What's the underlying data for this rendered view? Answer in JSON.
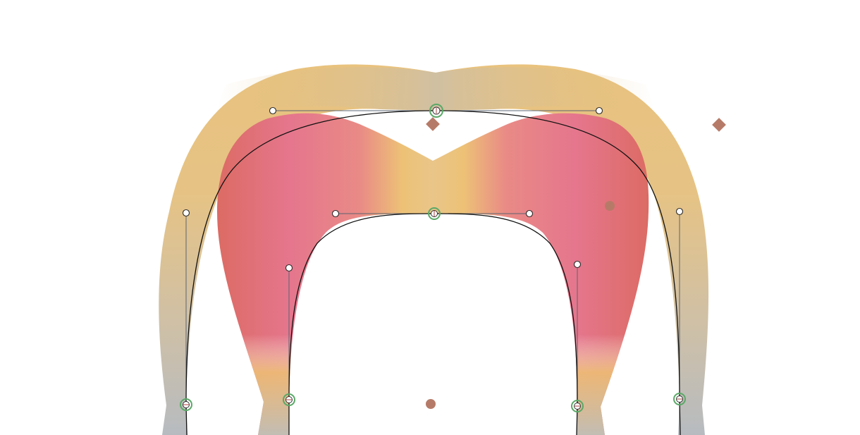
{
  "colors": {
    "outer_gradient": [
      "#b9bcc0",
      "#c8bda8",
      "#e2c38c",
      "#e9be7a",
      "#e3c08e",
      "#cdbfa6"
    ],
    "inner_gradient": [
      "#de6d6a",
      "#e6788f",
      "#eab57a",
      "#ecc578",
      "#e6788f",
      "#de6d6a"
    ],
    "handle_line": "#5b6470",
    "curve": "#111111",
    "anchor_ring": "#5aa867",
    "marker": "#b67b68"
  },
  "icons": {
    "anchor": "anchor-point-icon",
    "handle": "control-handle-icon",
    "diamond": "diamond-marker-icon",
    "circle": "circle-marker-icon"
  }
}
